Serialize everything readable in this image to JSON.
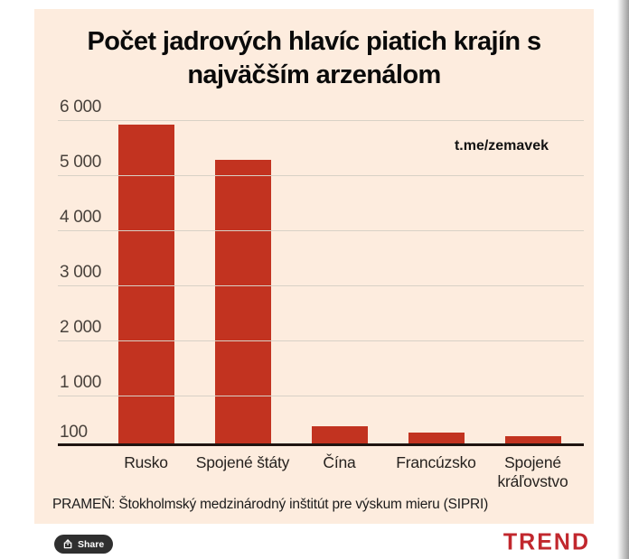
{
  "chart_data": {
    "type": "bar",
    "title": "Počet jadrových hlavíc piatich krajín s najväčším arzenálom",
    "annotation": "t.me/zemavek",
    "source": "PRAMEŇ: Štokholmský medzinárodný inštitút pre výskum mieru (SIPRI)",
    "categories": [
      "Rusko",
      "Spojené štáty",
      "Čína",
      "Francúzsko",
      "Spojené kráľovstvo"
    ],
    "values": [
      5889,
      5244,
      410,
      290,
      225
    ],
    "xlabel": "",
    "ylabel": "",
    "ylim": [
      100,
      6000
    ],
    "yticks": [
      100,
      1000,
      2000,
      3000,
      4000,
      5000,
      6000
    ],
    "ytick_labels": [
      "100",
      "1 000",
      "2 000",
      "3 000",
      "4 000",
      "5 000",
      "6 000"
    ],
    "grid": true,
    "legend": false
  },
  "share": {
    "label": "Share"
  },
  "brand": {
    "label": "TREND"
  },
  "colors": {
    "bar": "#c23320",
    "card_bg": "#fdecde",
    "grid": "#d8d1c6",
    "axis": "#1f1410",
    "tick_text": "#49423c",
    "label_text": "#26221f",
    "brand_red": "#c1272d",
    "share_bg": "#2f2f2f"
  }
}
